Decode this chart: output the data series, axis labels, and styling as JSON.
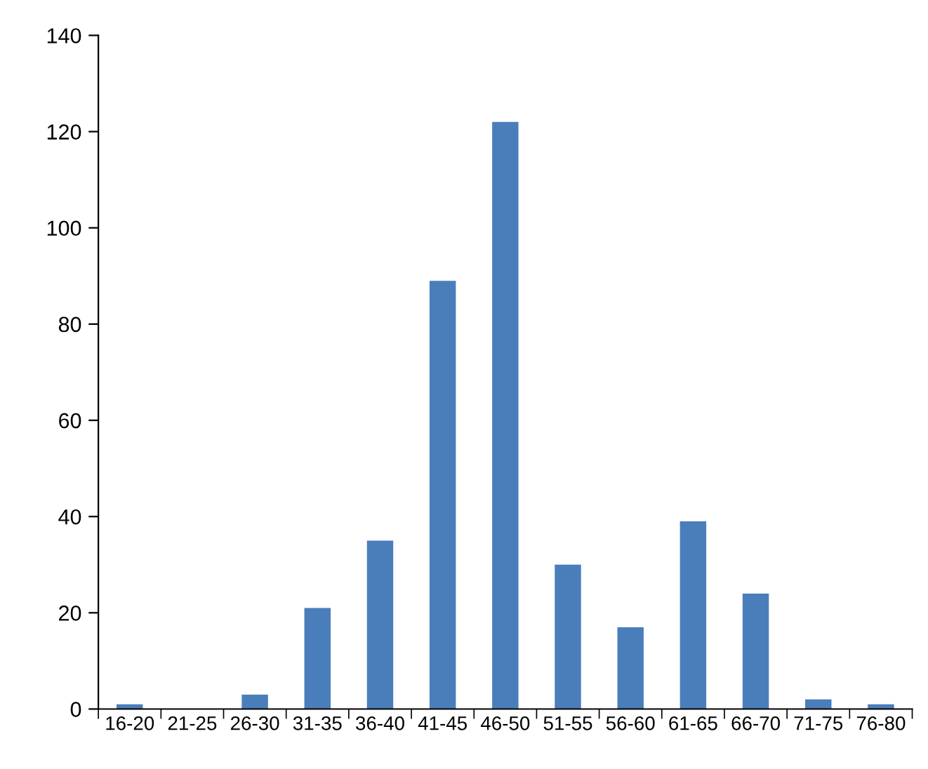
{
  "chart_data": {
    "type": "bar",
    "categories": [
      "16-20",
      "21-25",
      "26-30",
      "31-35",
      "36-40",
      "41-45",
      "46-50",
      "51-55",
      "56-60",
      "61-65",
      "66-70",
      "71-75",
      "76-80"
    ],
    "values": [
      1,
      0,
      3,
      21,
      35,
      89,
      122,
      30,
      17,
      39,
      24,
      2,
      1
    ],
    "color": "#4a7ebb",
    "ylim": [
      0,
      140
    ],
    "yticks": [
      0,
      20,
      40,
      60,
      80,
      100,
      120,
      140
    ],
    "grid": false
  }
}
